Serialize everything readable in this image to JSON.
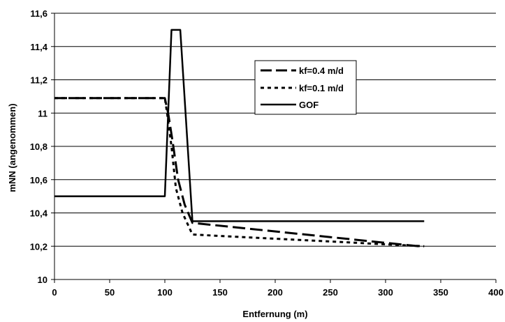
{
  "chart_data": {
    "type": "line",
    "xlabel": "Entfernung (m)",
    "ylabel": "mNN (angenommen)",
    "xlim": [
      0,
      400
    ],
    "ylim": [
      10,
      11.6
    ],
    "xticks": [
      0,
      50,
      100,
      150,
      200,
      250,
      300,
      350,
      400
    ],
    "yticks": [
      10,
      10.2,
      10.4,
      10.6,
      10.8,
      11,
      11.2,
      11.4,
      11.6
    ],
    "xtick_labels": [
      "0",
      "50",
      "100",
      "150",
      "200",
      "250",
      "300",
      "350",
      "400"
    ],
    "ytick_labels": [
      "10",
      "10,2",
      "10,4",
      "10,6",
      "10,8",
      "11",
      "11,2",
      "11,4",
      "11,6"
    ],
    "grid": "horizontal",
    "legend_position": "upper-right",
    "series": [
      {
        "name": "kf=0.4 m/d",
        "style": "long-dash",
        "color": "#000000",
        "x": [
          0,
          100,
          103,
          107,
          112,
          118,
          125,
          330
        ],
        "y": [
          11.09,
          11.09,
          11.0,
          10.83,
          10.6,
          10.45,
          10.34,
          10.2
        ]
      },
      {
        "name": "kf=0.1 m/d",
        "style": "short-dash",
        "color": "#000000",
        "x": [
          0,
          100,
          102,
          106,
          110,
          116,
          125,
          335
        ],
        "y": [
          11.09,
          11.09,
          11.0,
          10.8,
          10.55,
          10.4,
          10.27,
          10.2
        ]
      },
      {
        "name": "GOF",
        "style": "solid",
        "color": "#000000",
        "x": [
          0,
          100,
          106,
          114,
          125,
          335
        ],
        "y": [
          10.5,
          10.5,
          11.5,
          11.5,
          10.35,
          10.35
        ]
      }
    ]
  }
}
